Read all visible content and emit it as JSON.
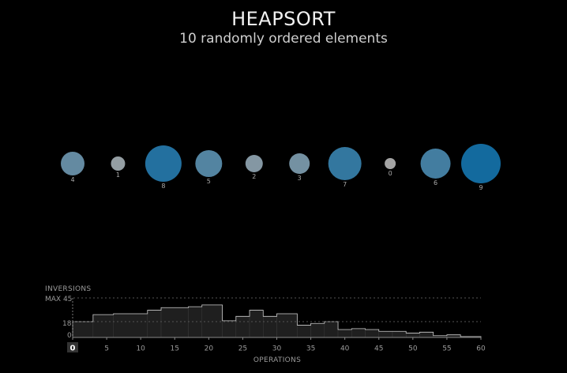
{
  "title": "HEAPSORT",
  "subtitle": "10 randomly ordered elements",
  "elements": [
    {
      "value": 4,
      "label": "4"
    },
    {
      "value": 1,
      "label": "1"
    },
    {
      "value": 8,
      "label": "8"
    },
    {
      "value": 5,
      "label": "5"
    },
    {
      "value": 2,
      "label": "2"
    },
    {
      "value": 3,
      "label": "3"
    },
    {
      "value": 7,
      "label": "7"
    },
    {
      "value": 0,
      "label": "0"
    },
    {
      "value": 6,
      "label": "6"
    },
    {
      "value": 9,
      "label": "9"
    }
  ],
  "colors": {
    "background": "#000000",
    "circle_low": "#a4a4a4",
    "circle_high": "#136a9e",
    "histogram_fill": "#1f1f1f",
    "histogram_stroke": "#cccccc",
    "text": "#aaaaaa"
  },
  "chart_data": {
    "type": "area",
    "ylabel": "INVERSIONS",
    "xlabel": "OPERATIONS",
    "max_label": "MAX 45",
    "y_ref_value": 18,
    "y_ref_label": "18",
    "zero_label": "0",
    "current_operation_label": "0",
    "xlim": [
      0,
      60
    ],
    "ylim": [
      0,
      45
    ],
    "xticks": [
      "0",
      "5",
      "10",
      "15",
      "20",
      "25",
      "30",
      "35",
      "40",
      "45",
      "50",
      "55",
      "60"
    ],
    "steps": [
      {
        "x0": 0,
        "x1": 3,
        "y": 18
      },
      {
        "x0": 3,
        "x1": 6,
        "y": 26
      },
      {
        "x0": 6,
        "x1": 11,
        "y": 27
      },
      {
        "x0": 11,
        "x1": 13,
        "y": 31
      },
      {
        "x0": 13,
        "x1": 17,
        "y": 34
      },
      {
        "x0": 17,
        "x1": 19,
        "y": 35
      },
      {
        "x0": 19,
        "x1": 22,
        "y": 37
      },
      {
        "x0": 22,
        "x1": 24,
        "y": 19
      },
      {
        "x0": 24,
        "x1": 26,
        "y": 24
      },
      {
        "x0": 26,
        "x1": 28,
        "y": 31
      },
      {
        "x0": 28,
        "x1": 30,
        "y": 24
      },
      {
        "x0": 30,
        "x1": 33,
        "y": 27
      },
      {
        "x0": 33,
        "x1": 35,
        "y": 14
      },
      {
        "x0": 35,
        "x1": 37,
        "y": 16
      },
      {
        "x0": 37,
        "x1": 39,
        "y": 18
      },
      {
        "x0": 39,
        "x1": 41,
        "y": 9
      },
      {
        "x0": 41,
        "x1": 43,
        "y": 10
      },
      {
        "x0": 43,
        "x1": 45,
        "y": 9
      },
      {
        "x0": 45,
        "x1": 47,
        "y": 7
      },
      {
        "x0": 47,
        "x1": 49,
        "y": 7
      },
      {
        "x0": 49,
        "x1": 51,
        "y": 5
      },
      {
        "x0": 51,
        "x1": 53,
        "y": 6
      },
      {
        "x0": 53,
        "x1": 55,
        "y": 2
      },
      {
        "x0": 55,
        "x1": 57,
        "y": 3
      },
      {
        "x0": 57,
        "x1": 60,
        "y": 1
      }
    ]
  }
}
